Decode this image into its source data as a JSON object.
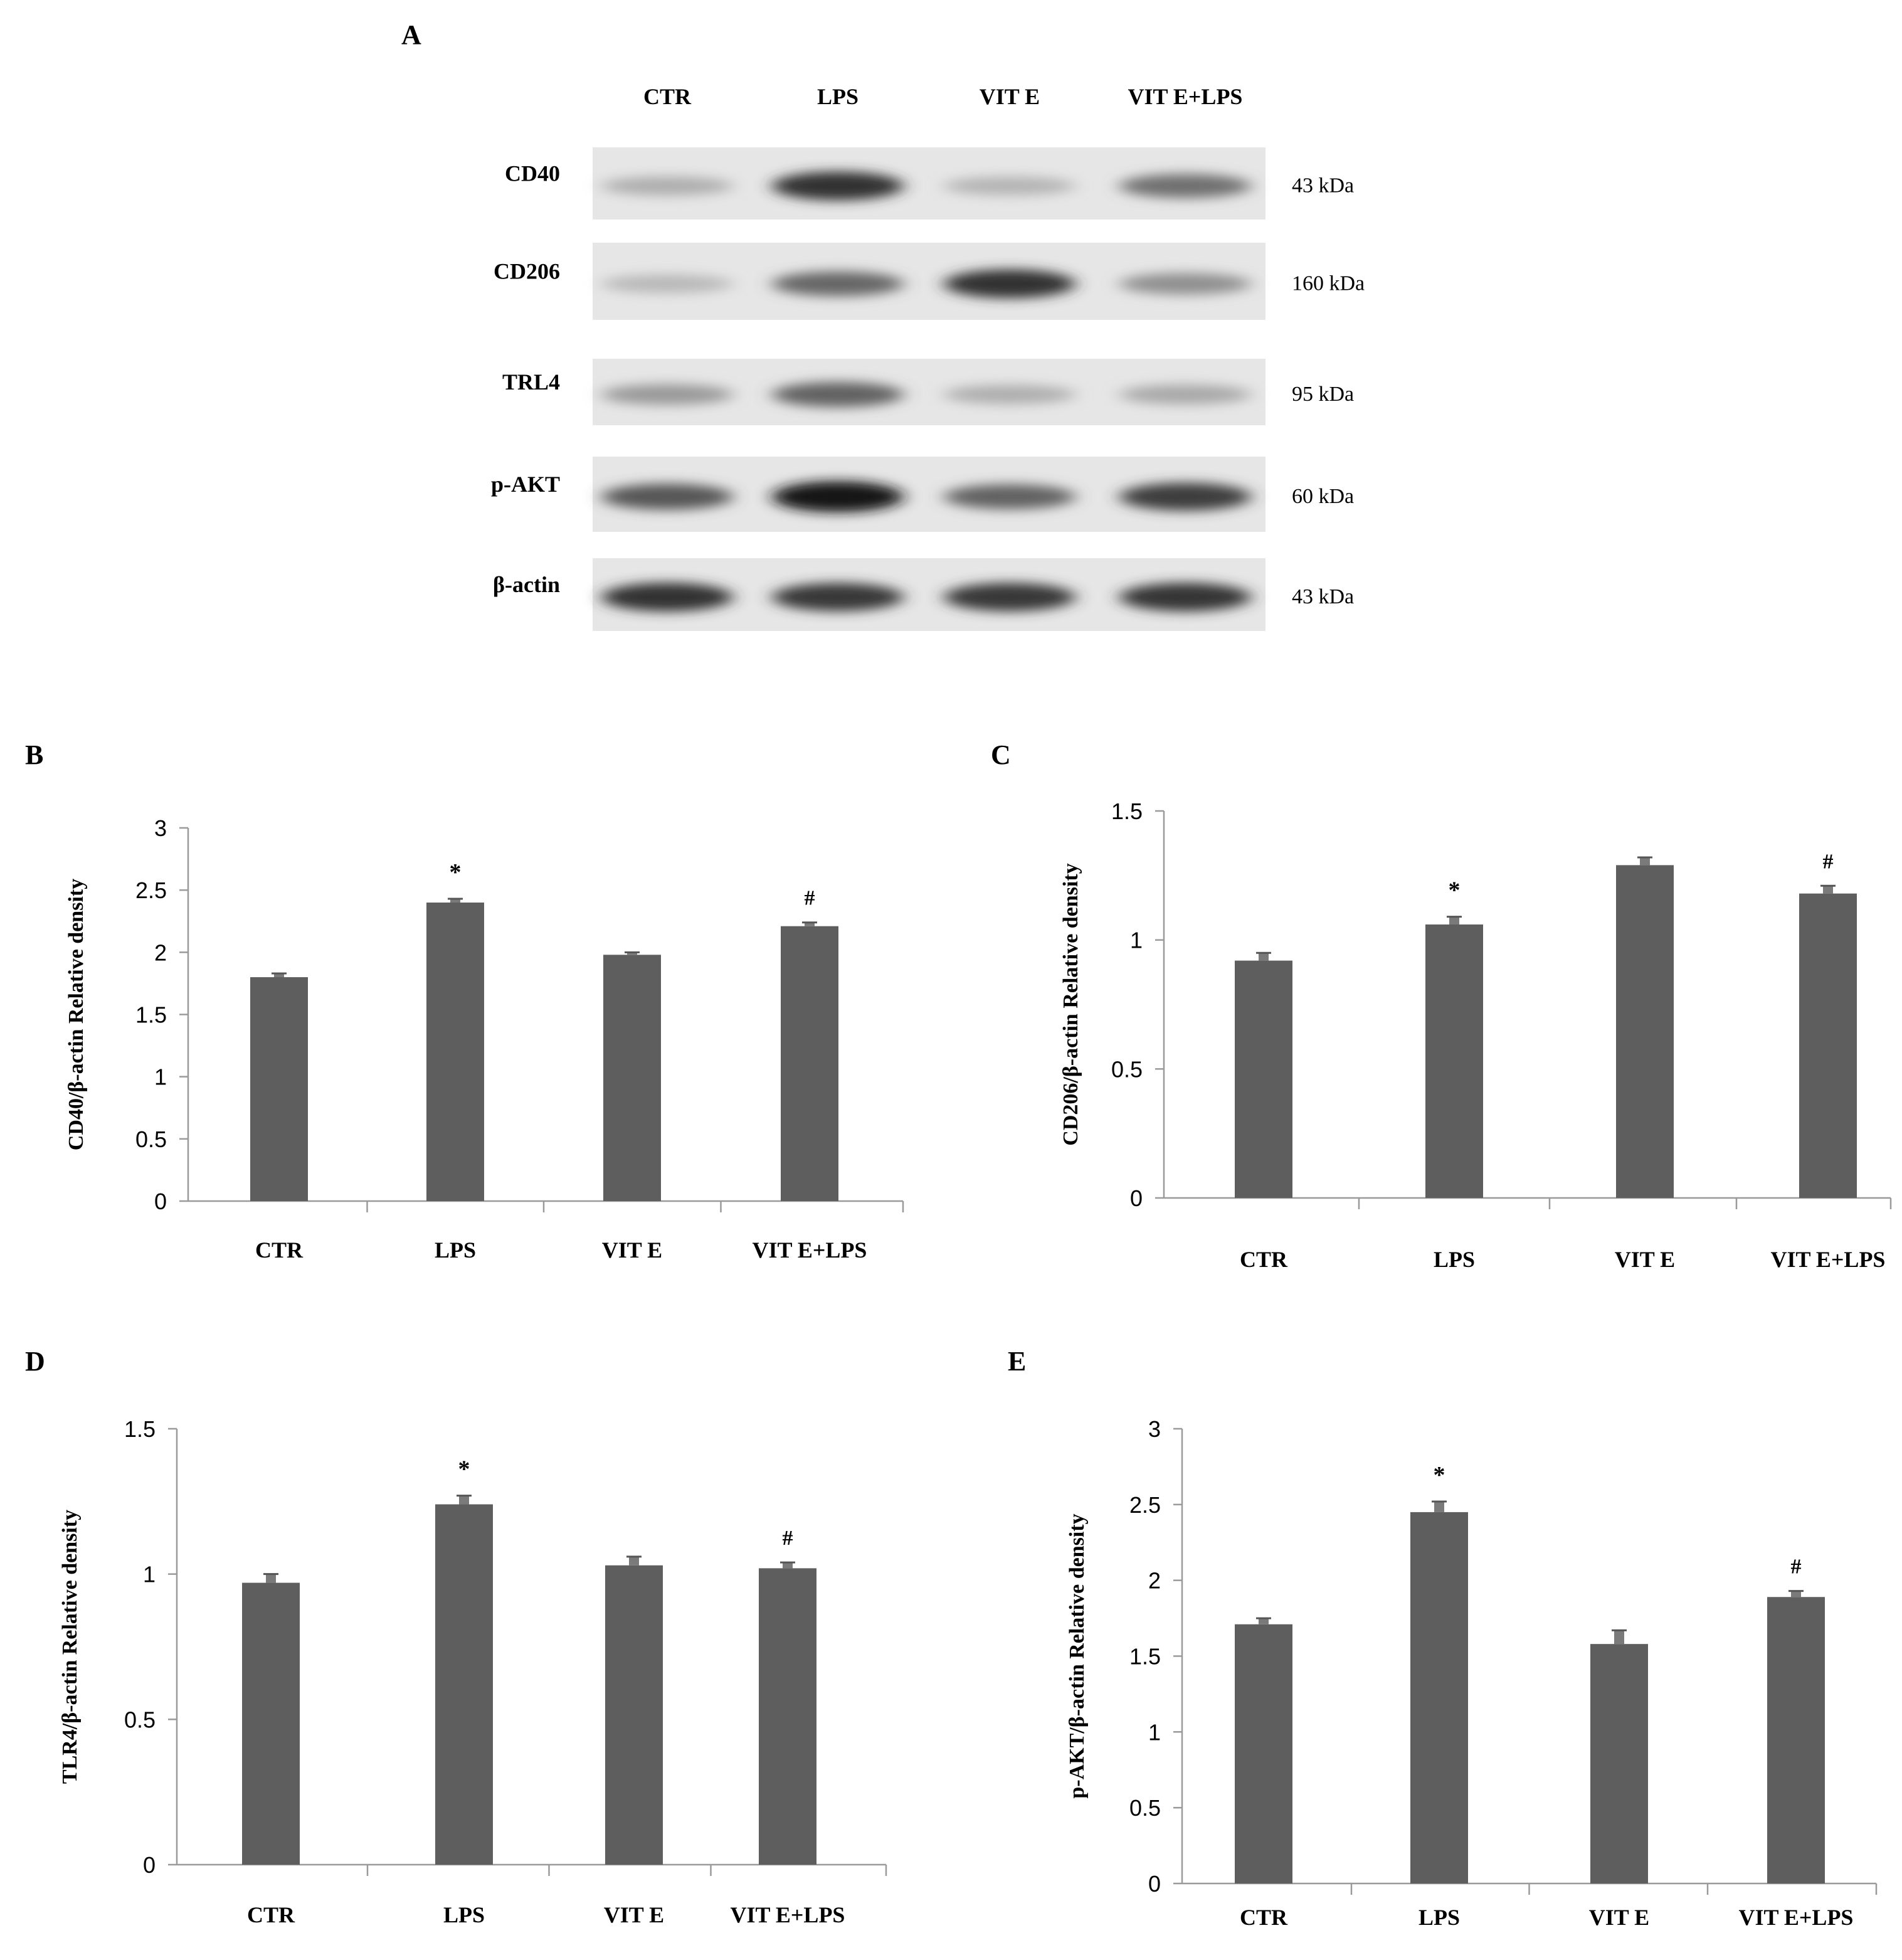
{
  "panel_a": {
    "label": "A",
    "lanes": [
      "CTR",
      "LPS",
      "VIT E",
      "VIT E+LPS"
    ],
    "rows": [
      {
        "protein": "CD40",
        "weight": "43 kDa",
        "intensity": [
          0.25,
          0.85,
          0.22,
          0.55
        ]
      },
      {
        "protein": "CD206",
        "weight": "160 kDa",
        "intensity": [
          0.2,
          0.6,
          0.85,
          0.4
        ]
      },
      {
        "protein": "TRL4",
        "weight": "95 kDa",
        "intensity": [
          0.35,
          0.62,
          0.25,
          0.28
        ]
      },
      {
        "protein": "p-AKT",
        "weight": "60 kDa",
        "intensity": [
          0.68,
          1.0,
          0.62,
          0.8
        ]
      },
      {
        "protein": "β-actin",
        "weight": "43 kDa",
        "intensity": [
          0.85,
          0.82,
          0.83,
          0.84
        ]
      }
    ]
  },
  "chart_data": [
    {
      "panel": "B",
      "type": "bar",
      "categories": [
        "CTR",
        "LPS",
        "VIT E",
        "VIT E+LPS"
      ],
      "values": [
        1.8,
        2.4,
        1.98,
        2.21
      ],
      "errors": [
        0.03,
        0.03,
        0.02,
        0.03
      ],
      "annotations": [
        "",
        "*",
        "",
        "#"
      ],
      "ylabel": "CD40/β-actin  Relative density",
      "ylim": [
        0,
        3
      ],
      "yticks": [
        "0",
        "0.5",
        "1",
        "1.5",
        "2",
        "2.5",
        "3"
      ],
      "bar_color": "#5e5e5e"
    },
    {
      "panel": "C",
      "type": "bar",
      "categories": [
        "CTR",
        "LPS",
        "VIT E",
        "VIT E+LPS"
      ],
      "values": [
        0.92,
        1.06,
        1.29,
        1.18
      ],
      "errors": [
        0.03,
        0.03,
        0.03,
        0.03
      ],
      "annotations": [
        "",
        "*",
        "",
        "#"
      ],
      "ylabel": "CD206/β-actin  Relative density",
      "ylim": [
        0,
        1.5
      ],
      "yticks": [
        "0",
        "0.5",
        "1",
        "1.5"
      ],
      "bar_color": "#5e5e5e"
    },
    {
      "panel": "D",
      "type": "bar",
      "categories": [
        "CTR",
        "LPS",
        "VIT E",
        "VIT E+LPS"
      ],
      "values": [
        0.97,
        1.24,
        1.03,
        1.02
      ],
      "errors": [
        0.03,
        0.03,
        0.03,
        0.02
      ],
      "annotations": [
        "",
        "*",
        "",
        "#"
      ],
      "ylabel": "TLR4/β-actin  Relative density",
      "ylim": [
        0,
        1.5
      ],
      "yticks": [
        "0",
        "0.5",
        "1",
        "1.5"
      ],
      "bar_color": "#5e5e5e"
    },
    {
      "panel": "E",
      "type": "bar",
      "categories": [
        "CTR",
        "LPS",
        "VIT E",
        "VIT E+LPS"
      ],
      "values": [
        1.71,
        2.45,
        1.58,
        1.89
      ],
      "errors": [
        0.04,
        0.07,
        0.09,
        0.04
      ],
      "annotations": [
        "",
        "*",
        "",
        "#"
      ],
      "ylabel": "p-AKT/β-actin Relative density",
      "ylim": [
        0,
        3
      ],
      "yticks": [
        "0",
        "0.5",
        "1",
        "1.5",
        "2",
        "2.5",
        "3"
      ],
      "bar_color": "#5e5e5e"
    }
  ]
}
